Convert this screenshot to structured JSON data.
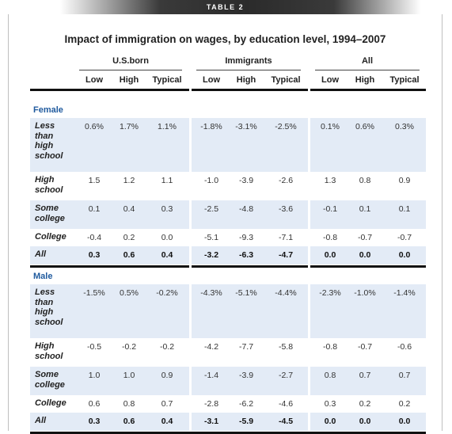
{
  "table_tag": "TABLE 2",
  "title": "Impact of immigration on wages, by education level, 1994–2007",
  "groups": [
    "U.S.born",
    "Immigrants",
    "All"
  ],
  "subcols": [
    "Low",
    "High",
    "Typical"
  ],
  "sections": [
    {
      "name": "Female",
      "rows": [
        {
          "label": "Less than high school",
          "lines": [
            "Less",
            "than",
            "high",
            "school"
          ],
          "values": [
            "0.6%",
            "1.7%",
            "1.1%",
            "-1.8%",
            "-3.1%",
            "-2.5%",
            "0.1%",
            "0.6%",
            "0.3%"
          ],
          "bold": false
        },
        {
          "label": "High school",
          "lines": [
            "High",
            "school"
          ],
          "values": [
            "1.5",
            "1.2",
            "1.1",
            "-1.0",
            "-3.9",
            "-2.6",
            "1.3",
            "0.8",
            "0.9"
          ],
          "bold": false
        },
        {
          "label": "Some college",
          "lines": [
            "Some",
            "college"
          ],
          "values": [
            "0.1",
            "0.4",
            "0.3",
            "-2.5",
            "-4.8",
            "-3.6",
            "-0.1",
            "0.1",
            "0.1"
          ],
          "bold": false
        },
        {
          "label": "College",
          "lines": [
            "College"
          ],
          "values": [
            "-0.4",
            "0.2",
            "0.0",
            "-5.1",
            "-9.3",
            "-7.1",
            "-0.8",
            "-0.7",
            "-0.7"
          ],
          "bold": false
        },
        {
          "label": "All",
          "lines": [
            "All"
          ],
          "values": [
            "0.3",
            "0.6",
            "0.4",
            "-3.2",
            "-6.3",
            "-4.7",
            "0.0",
            "0.0",
            "0.0"
          ],
          "bold": true
        }
      ]
    },
    {
      "name": "Male",
      "rows": [
        {
          "label": "Less than high school",
          "lines": [
            "Less",
            "than",
            "high",
            "school"
          ],
          "values": [
            "-1.5%",
            "0.5%",
            "-0.2%",
            "-4.3%",
            "-5.1%",
            "-4.4%",
            "-2.3%",
            "-1.0%",
            "-1.4%"
          ],
          "bold": false
        },
        {
          "label": "High school",
          "lines": [
            "High",
            "school"
          ],
          "values": [
            "-0.5",
            "-0.2",
            "-0.2",
            "-4.2",
            "-7.7",
            "-5.8",
            "-0.8",
            "-0.7",
            "-0.6"
          ],
          "bold": false
        },
        {
          "label": "Some college",
          "lines": [
            "Some",
            "college"
          ],
          "values": [
            "1.0",
            "1.0",
            "0.9",
            "-1.4",
            "-3.9",
            "-2.7",
            "0.8",
            "0.7",
            "0.7"
          ],
          "bold": false
        },
        {
          "label": "College",
          "lines": [
            "College"
          ],
          "values": [
            "0.6",
            "0.8",
            "0.7",
            "-2.8",
            "-6.2",
            "-4.6",
            "0.3",
            "0.2",
            "0.2"
          ],
          "bold": false
        },
        {
          "label": "All",
          "lines": [
            "All"
          ],
          "values": [
            "0.3",
            "0.6",
            "0.4",
            "-3.1",
            "-5.9",
            "-4.5",
            "0.0",
            "0.0",
            "0.0"
          ],
          "bold": true
        }
      ]
    }
  ]
}
